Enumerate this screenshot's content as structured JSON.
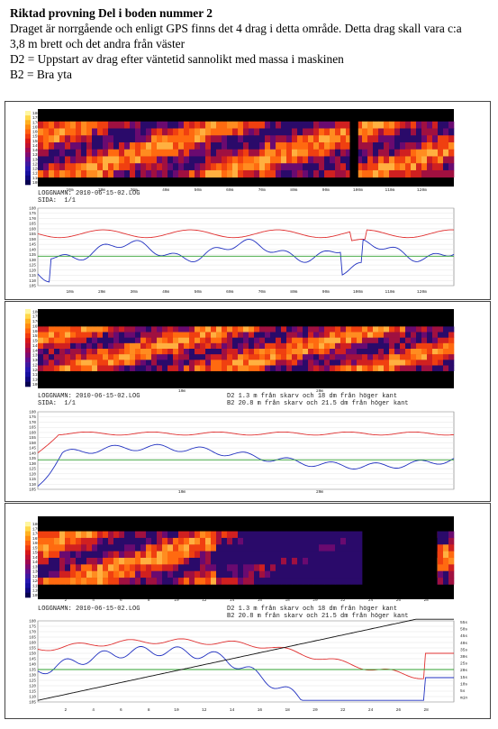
{
  "header": {
    "title": "Riktad provning Del i boden nummer 2",
    "line1": "Draget är norrgående och enligt GPS finns det 4 drag i detta område. Detta drag skall vara c:a",
    "line2": "3,8 m brett och det andra från väster",
    "line3": "D2 = Uppstart av drag efter väntetid sannolikt med massa i maskinen",
    "line4": "B2 = Bra yta"
  },
  "scale_labels": [
    "180",
    "175",
    "170",
    "165",
    "160",
    "155",
    "150",
    "145",
    "140",
    "135",
    "130",
    "125",
    "120",
    "115",
    "110",
    "105"
  ],
  "panels": [
    {
      "log": "LOGGNAMN: 2010-06-15-02.LOG",
      "sida": "SIDA:  1/1",
      "d2": "",
      "b2": "",
      "x_ticks": [
        "10m",
        "20m",
        "30m",
        "40m",
        "50m",
        "60m",
        "70m",
        "80m",
        "90m",
        "100m",
        "110m",
        "120m"
      ],
      "right_ticks": []
    },
    {
      "log": "LOGGNAMN: 2010-06-15-02.LOG",
      "sida": "SIDA:  1/1",
      "d2": "D2 1.3 m från skarv och 18 dm från höger kant",
      "b2": "B2 20.8 m från skarv och 21.5 dm från höger kant",
      "x_ticks": [
        "10m",
        "20m"
      ],
      "right_ticks": []
    },
    {
      "log": "LOGGNAMN: 2010-06-15-02.LOG",
      "sida": "SIDA:  1/1",
      "d2": "D2 1.3 m från skarv och 18 dm från höger kant",
      "b2": "B2 20.8 m från skarv och 21.5 dm från höger kant",
      "x_ticks": [
        "2",
        "4",
        "6",
        "8",
        "10",
        "12",
        "14",
        "16",
        "18",
        "20",
        "22",
        "24",
        "26",
        "28"
      ],
      "right_ticks": [
        "55s",
        "50s",
        "45s",
        "40s",
        "35s",
        "30s",
        "25s",
        "20s",
        "15s",
        "10s",
        "5s",
        "min"
      ]
    }
  ],
  "colors": {
    "max_line": "#e03030",
    "min_line": "#2030c0",
    "ref_line": "#30a030",
    "time_line": "#111111"
  }
}
